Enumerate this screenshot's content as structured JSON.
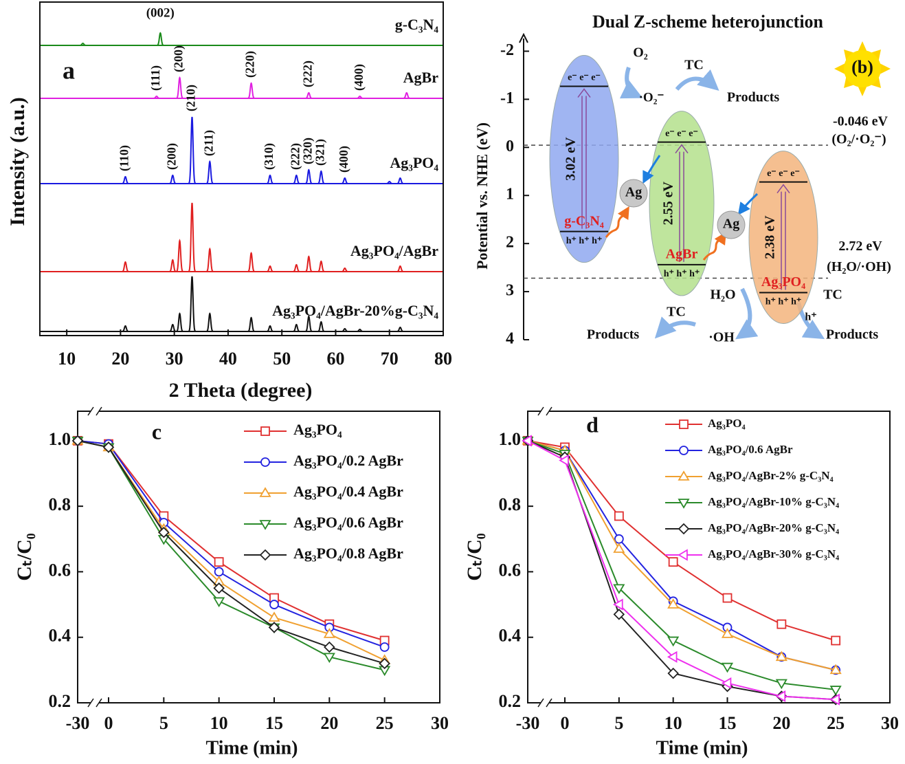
{
  "chart_data": [
    {
      "type": "xrd",
      "panel_label": "a",
      "xlabel": "2 Theta (degree)",
      "ylabel": "Intensity (a.u.)",
      "xlim": [
        5,
        80
      ],
      "xticks": [
        10,
        20,
        30,
        40,
        50,
        60,
        70,
        80
      ],
      "series": [
        {
          "name": "g-C₃N₄",
          "color": "#1a8a1a",
          "peak_x": [
            13.0,
            27.4
          ],
          "peak_height": [
            3,
            18
          ],
          "peak_labels": [
            {
              "x": 27.4,
              "label": "(002)"
            }
          ]
        },
        {
          "name": "AgBr",
          "color": "#e020e0",
          "peak_x": [
            26.7,
            31.0,
            44.3,
            55.0,
            64.5,
            73.2
          ],
          "peak_height": [
            3,
            30,
            22,
            8,
            3,
            8
          ],
          "peak_labels": [
            {
              "x": 26.7,
              "label": "(111)"
            },
            {
              "x": 31.0,
              "label": "(200)"
            },
            {
              "x": 44.3,
              "label": "(220)"
            },
            {
              "x": 55.0,
              "label": "(222)"
            },
            {
              "x": 64.5,
              "label": "(400)"
            }
          ]
        },
        {
          "name": "Ag₃PO₄",
          "color": "#1a1ae0",
          "peak_x": [
            20.9,
            29.7,
            33.3,
            36.6,
            47.8,
            52.7,
            55.0,
            57.3,
            61.7,
            70.0,
            72.0
          ],
          "peak_height": [
            10,
            12,
            97,
            32,
            12,
            12,
            20,
            18,
            8,
            3,
            8
          ],
          "peak_labels": [
            {
              "x": 20.9,
              "label": "(110)"
            },
            {
              "x": 29.7,
              "label": "(200)"
            },
            {
              "x": 33.3,
              "label": "(210)"
            },
            {
              "x": 36.6,
              "label": "(211)"
            },
            {
              "x": 47.8,
              "label": "(310)"
            },
            {
              "x": 52.7,
              "label": "(222)"
            },
            {
              "x": 55.0,
              "label": "(320)"
            },
            {
              "x": 57.3,
              "label": "(321)"
            },
            {
              "x": 61.7,
              "label": "(400)"
            }
          ]
        },
        {
          "name": "Ag₃PO₄/AgBr",
          "color": "#e02020",
          "peak_x": [
            20.9,
            29.7,
            31.0,
            33.3,
            36.6,
            44.3,
            47.8,
            52.7,
            55.0,
            57.3,
            61.7,
            72.0
          ],
          "peak_height": [
            14,
            17,
            45,
            100,
            33,
            27,
            8,
            10,
            22,
            15,
            5,
            8
          ],
          "peak_labels": []
        },
        {
          "name": "Ag₃PO₄/AgBr-20%g-C₃N₄",
          "color": "#111111",
          "peak_x": [
            20.9,
            29.7,
            31.0,
            33.3,
            36.6,
            44.3,
            47.8,
            52.7,
            55.0,
            57.3,
            61.7,
            64.5,
            72.0
          ],
          "peak_height": [
            8,
            10,
            26,
            80,
            26,
            20,
            8,
            10,
            22,
            14,
            4,
            3,
            6
          ],
          "peak_labels": []
        }
      ]
    },
    {
      "type": "band",
      "title": "Dual Z-scheme heterojunction",
      "panel_label": "(b)",
      "ylabel": "Potential vs. NHE (eV)",
      "ylim": [
        -2.35,
        4
      ],
      "yticks": [
        -2,
        -1,
        0,
        1,
        2,
        3,
        4
      ],
      "potentials": [
        {
          "value": -0.046,
          "label": "-0.046 eV",
          "couple": "(O₂/·O₂⁻)"
        },
        {
          "value": 2.72,
          "label": "2.72 eV",
          "couple": "(H₂O/·OH)"
        }
      ],
      "semiconductors": [
        {
          "name": "g-C₃N₄",
          "gap": "3.02 eV",
          "cb": -1.27,
          "vb": 1.75,
          "color": "#8fa8f0",
          "electrons": "e⁻ e⁻ e⁻",
          "holes": "h⁺ h⁺ h⁺"
        },
        {
          "name": "AgBr",
          "gap": "2.55 eV",
          "cb": -0.11,
          "vb": 2.44,
          "color": "#b4e08c",
          "electrons": "e⁻ e⁻ e⁻",
          "holes": "h⁺ h⁺ h⁺"
        },
        {
          "name": "Ag₃PO₄",
          "gap": "2.38 eV",
          "cb": 0.72,
          "vb": 3.02,
          "color": "#f3b47c",
          "electrons": "e⁻ e⁻ e⁻",
          "holes": "h⁺ h⁺ h⁺"
        }
      ],
      "annotations": {
        "o2": "O₂",
        "superoxide": "·O₂⁻",
        "tc_top": "TC",
        "products_top": "Products",
        "ag_1": "Ag",
        "ag_2": "Ag",
        "water": "H₂O",
        "tc_middle": "TC",
        "products_left": "Products",
        "hydroxyl": "·OH",
        "tc_right": "TC",
        "hole": "h⁺",
        "products_right": "Products"
      }
    },
    {
      "type": "line",
      "panel_label": "c",
      "xlabel": "Time (min)",
      "ylabel": "Cₜ/C₀",
      "x": [
        -30,
        0,
        5,
        10,
        15,
        20,
        25
      ],
      "xlim": [
        -30,
        30
      ],
      "xticks": [
        -30,
        0,
        5,
        10,
        15,
        20,
        25,
        30
      ],
      "ylim": [
        0.2,
        1.09
      ],
      "yticks": [
        0.2,
        0.4,
        0.6,
        0.8,
        {
          "value": 1,
          "label": "1.0"
        }
      ],
      "series": [
        {
          "name": "Ag₃PO₄",
          "color": "#e03030",
          "marker": "square",
          "values": [
            1.0,
            0.99,
            0.77,
            0.63,
            0.52,
            0.44,
            0.39
          ]
        },
        {
          "name": "Ag₃PO₄/0.2 AgBr",
          "color": "#2323e0",
          "marker": "circle",
          "values": [
            1.0,
            0.99,
            0.75,
            0.6,
            0.5,
            0.43,
            0.37
          ]
        },
        {
          "name": "Ag₃PO₄/0.4 AgBr",
          "color": "#f0a030",
          "marker": "triangle-up",
          "values": [
            1.0,
            0.98,
            0.73,
            0.57,
            0.46,
            0.41,
            0.33
          ]
        },
        {
          "name": "Ag₃PO₄/0.6 AgBr",
          "color": "#2a8a2a",
          "marker": "triangle-down",
          "values": [
            1.0,
            0.98,
            0.7,
            0.51,
            0.43,
            0.34,
            0.3
          ]
        },
        {
          "name": "Ag₃PO₄/0.8 AgBr",
          "color": "#222222",
          "marker": "diamond",
          "values": [
            1.0,
            0.98,
            0.72,
            0.55,
            0.43,
            0.37,
            0.32
          ]
        }
      ]
    },
    {
      "type": "line",
      "panel_label": "d",
      "xlabel": "Time (min)",
      "ylabel": "Cₜ/C₀",
      "x": [
        -30,
        0,
        5,
        10,
        15,
        20,
        25
      ],
      "xlim": [
        -30,
        30
      ],
      "xticks": [
        -30,
        0,
        5,
        10,
        15,
        20,
        25,
        30
      ],
      "ylim": [
        0.2,
        1.09
      ],
      "yticks": [
        0.2,
        0.4,
        0.6,
        0.8,
        {
          "value": 1,
          "label": "1.0"
        }
      ],
      "series": [
        {
          "name": "Ag₃PO₄",
          "color": "#e03030",
          "marker": "square",
          "values": [
            1.0,
            0.98,
            0.77,
            0.63,
            0.52,
            0.44,
            0.39
          ]
        },
        {
          "name": "Ag₃PO₄/0.6 AgBr",
          "color": "#2323e0",
          "marker": "circle",
          "values": [
            1.0,
            0.97,
            0.7,
            0.51,
            0.43,
            0.34,
            0.3
          ]
        },
        {
          "name": "Ag₃PO₄/AgBr-2%  g-C₃N₄",
          "color": "#f0a030",
          "marker": "triangle-up",
          "values": [
            1.0,
            0.97,
            0.67,
            0.5,
            0.41,
            0.34,
            0.3
          ]
        },
        {
          "name": "Ag₃PO₄/AgBr-10% g-C₃N₄",
          "color": "#2a8a2a",
          "marker": "triangle-down",
          "values": [
            1.0,
            0.96,
            0.55,
            0.39,
            0.31,
            0.26,
            0.24
          ]
        },
        {
          "name": "Ag₃PO₄/AgBr-20% g-C₃N₄",
          "color": "#222222",
          "marker": "diamond",
          "values": [
            1.0,
            0.95,
            0.47,
            0.29,
            0.25,
            0.22,
            0.21
          ]
        },
        {
          "name": "Ag₃PO₄/AgBr-30% g-C₃N₄",
          "color": "#ee30ee",
          "marker": "triangle-left",
          "values": [
            1.0,
            0.94,
            0.5,
            0.34,
            0.26,
            0.22,
            0.21
          ]
        }
      ]
    }
  ]
}
